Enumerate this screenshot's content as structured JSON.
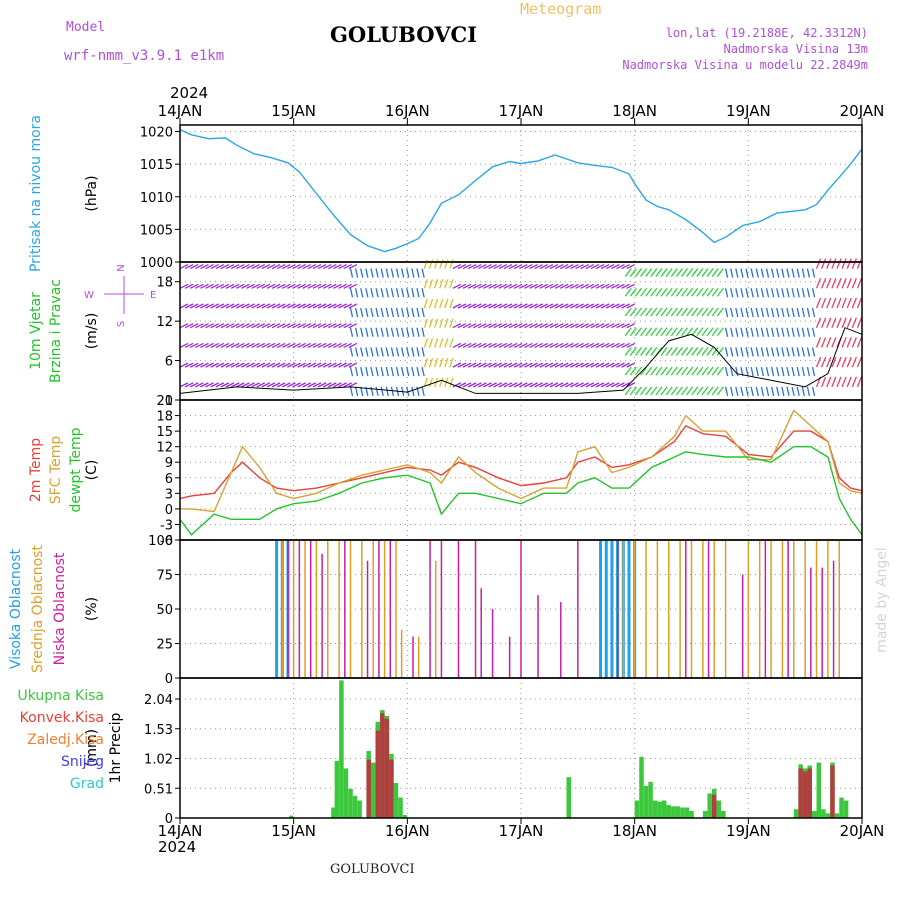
{
  "header": {
    "model_label": "Model",
    "model_name": "wrf-nmm_v3.9.1 e1km",
    "title": "GOLUBOVCI",
    "meteogram": "Meteogram",
    "lonlat": "lon,lat (19.2188E, 42.3312N)",
    "altitude": "Nadmorska Visina 13m",
    "model_altitude": "Nadmorska Visina u modelu 22.2849m",
    "year_top": "2024",
    "year_bottom": "2024",
    "footer_title": "GOLUBOVCI",
    "watermark": "made by Angel"
  },
  "colors": {
    "pressure": "#2aa6e6",
    "temp_2m": "#e8403a",
    "temp_sfc": "#d8a232",
    "dewpoint": "#22c42a",
    "cloud_high": "#22a0e6",
    "cloud_mid": "#dca028",
    "cloud_low": "#c81ea0",
    "precip_total": "#3cc83c",
    "precip_conv": "#b04040",
    "label_purple": "#b14fd8"
  },
  "chart_data": [
    {
      "type": "line",
      "name": "pressure",
      "ylabel_lines": [
        "Pritisak na nivou mora"
      ],
      "unit": "(hPa)",
      "ylim": [
        1000,
        1021
      ],
      "yticks": [
        1000,
        1005,
        1010,
        1015,
        1020
      ],
      "x_ticks": [
        "14JAN",
        "15JAN",
        "16JAN",
        "17JAN",
        "18JAN",
        "19JAN",
        "20JAN"
      ],
      "series": [
        {
          "x": [
            0,
            0.1,
            0.25,
            0.4,
            0.5,
            0.65,
            0.8,
            0.95,
            1.05,
            1.2,
            1.35,
            1.5,
            1.65,
            1.8,
            1.9,
            2.0,
            2.1,
            2.2,
            2.3,
            2.45,
            2.6,
            2.75,
            2.9,
            3.0,
            3.15,
            3.3,
            3.5,
            3.65,
            3.8,
            3.95,
            4.0,
            4.1,
            4.2,
            4.3,
            4.45,
            4.6,
            4.7,
            4.8,
            4.95,
            5.1,
            5.25,
            5.4,
            5.5,
            5.6,
            5.7,
            5.8,
            5.9,
            6.0
          ],
          "y": [
            1020.3,
            1019.5,
            1018.9,
            1019.0,
            1017.9,
            1016.6,
            1016.0,
            1015.2,
            1013.8,
            1010.5,
            1007.2,
            1004.2,
            1002.5,
            1001.6,
            1002.1,
            1002.8,
            1003.6,
            1006.0,
            1009.0,
            1010.3,
            1012.5,
            1014.6,
            1015.4,
            1015.1,
            1015.5,
            1016.4,
            1015.2,
            1014.8,
            1014.5,
            1013.5,
            1012.0,
            1009.5,
            1008.5,
            1008.0,
            1006.5,
            1004.5,
            1003.0,
            1003.8,
            1005.6,
            1006.2,
            1007.5,
            1007.8,
            1008.0,
            1008.8,
            1011.0,
            1013.0,
            1015.0,
            1017.3
          ]
        }
      ]
    },
    {
      "type": "scatter",
      "name": "wind",
      "ylabel_lines": [
        "10m Vjetar",
        "Brzina i Pravac"
      ],
      "unit": "(m/s)",
      "compass": {
        "north": "N",
        "south": "S",
        "west": "W",
        "east": "E"
      },
      "ylim": [
        0,
        21
      ],
      "yticks": [
        0,
        6,
        12,
        18
      ],
      "x_ticks": [
        "14JAN",
        "15JAN",
        "16JAN",
        "17JAN",
        "18JAN",
        "19JAN",
        "20JAN"
      ],
      "speed_series": {
        "x": [
          0,
          0.5,
          1.0,
          1.5,
          2.0,
          2.3,
          2.6,
          3.0,
          3.5,
          3.9,
          4.1,
          4.3,
          4.5,
          4.7,
          4.9,
          5.2,
          5.5,
          5.7,
          5.85,
          6.0
        ],
        "y": [
          1,
          2,
          1.5,
          2,
          1.2,
          3,
          1,
          1,
          1,
          1.5,
          5,
          9,
          10,
          8,
          4,
          3,
          2,
          4,
          11,
          10
        ]
      },
      "direction_periods": [
        {
          "from": 0.0,
          "to": 1.5,
          "color": "#9a2ad8"
        },
        {
          "from": 1.5,
          "to": 2.15,
          "color": "#2a70e0"
        },
        {
          "from": 2.15,
          "to": 2.4,
          "color": "#d8c028"
        },
        {
          "from": 2.4,
          "to": 3.97,
          "color": "#9a2ad8"
        },
        {
          "from": 3.97,
          "to": 4.8,
          "color": "#30d040"
        },
        {
          "from": 4.8,
          "to": 5.6,
          "color": "#2a70e0"
        },
        {
          "from": 5.6,
          "to": 6.0,
          "color": "#e84060"
        }
      ]
    },
    {
      "type": "line",
      "name": "temperature",
      "ylabel_lines": [
        "2m Temp",
        "SFC Temp",
        "dewpt Temp"
      ],
      "unit": "(C)",
      "ylim": [
        -6,
        21
      ],
      "yticks": [
        -6,
        -3,
        0,
        3,
        6,
        9,
        12,
        15,
        18,
        21
      ],
      "x_ticks": [
        "14JAN",
        "15JAN",
        "16JAN",
        "17JAN",
        "18JAN",
        "19JAN",
        "20JAN"
      ],
      "series": [
        {
          "key": "temp_2m",
          "x": [
            0,
            0.1,
            0.3,
            0.45,
            0.55,
            0.7,
            0.85,
            1.0,
            1.2,
            1.4,
            1.6,
            1.8,
            2.0,
            2.2,
            2.3,
            2.45,
            2.6,
            2.8,
            3.0,
            3.2,
            3.4,
            3.5,
            3.65,
            3.8,
            3.95,
            4.15,
            4.35,
            4.45,
            4.6,
            4.8,
            5.0,
            5.2,
            5.4,
            5.55,
            5.7,
            5.8,
            5.9,
            6.0
          ],
          "y": [
            2,
            2.5,
            3,
            7,
            9,
            6,
            4,
            3.5,
            4,
            5,
            6,
            7,
            8,
            7.5,
            6.5,
            9,
            8,
            6,
            4.5,
            5,
            6,
            9,
            10,
            8,
            8.5,
            10,
            13,
            16,
            14.5,
            14,
            10.5,
            10,
            15,
            15,
            13,
            6,
            4,
            3.5
          ]
        },
        {
          "key": "temp_sfc",
          "x": [
            0,
            0.1,
            0.3,
            0.45,
            0.55,
            0.7,
            0.85,
            1.0,
            1.2,
            1.4,
            1.6,
            1.8,
            2.0,
            2.2,
            2.3,
            2.45,
            2.6,
            2.8,
            3.0,
            3.2,
            3.4,
            3.5,
            3.65,
            3.8,
            3.95,
            4.15,
            4.35,
            4.45,
            4.6,
            4.8,
            5.0,
            5.2,
            5.4,
            5.55,
            5.7,
            5.8,
            5.9,
            6.0
          ],
          "y": [
            0,
            0,
            -0.5,
            7,
            12,
            8,
            3,
            2,
            3,
            5,
            6.5,
            7.5,
            8.5,
            7,
            5,
            10,
            7,
            4,
            2,
            4,
            4,
            11,
            12,
            7,
            8,
            10,
            14,
            18,
            15,
            15,
            9.5,
            9.5,
            19,
            16,
            13,
            5,
            3.5,
            3
          ]
        },
        {
          "key": "dewpoint",
          "x": [
            0,
            0.1,
            0.3,
            0.45,
            0.55,
            0.7,
            0.85,
            1.0,
            1.2,
            1.4,
            1.6,
            1.8,
            2.0,
            2.2,
            2.3,
            2.45,
            2.6,
            2.8,
            3.0,
            3.2,
            3.4,
            3.5,
            3.65,
            3.8,
            3.95,
            4.15,
            4.35,
            4.45,
            4.6,
            4.8,
            5.0,
            5.2,
            5.4,
            5.55,
            5.7,
            5.8,
            5.9,
            6.0
          ],
          "y": [
            -2,
            -5,
            -1,
            -2,
            -2,
            -2,
            0,
            1,
            1.5,
            3,
            5,
            6,
            6.5,
            5,
            -1,
            3,
            3,
            2,
            1,
            3,
            3,
            5,
            6,
            4,
            4,
            8,
            10,
            11,
            10.5,
            10,
            10,
            9,
            12,
            12,
            10,
            2,
            -2,
            -5
          ]
        }
      ]
    },
    {
      "type": "bar",
      "name": "clouds",
      "ylabel_lines": [
        "Visoka Oblacnost",
        "Srednja Oblacnost",
        "Niska Oblacnost"
      ],
      "unit": "(%)",
      "ylim": [
        0,
        100
      ],
      "yticks": [
        0,
        25,
        50,
        75,
        100
      ],
      "x_ticks": [
        "14JAN",
        "15JAN",
        "16JAN",
        "17JAN",
        "18JAN",
        "19JAN",
        "20JAN"
      ],
      "series": [
        {
          "key": "cloud_high",
          "x": [
            0.85,
            0.9,
            0.95,
            3.7,
            3.75,
            3.8,
            3.85,
            3.9,
            3.95,
            4.0
          ],
          "y": [
            100,
            100,
            100,
            100,
            100,
            100,
            100,
            100,
            100,
            100
          ]
        },
        {
          "key": "cloud_mid",
          "x": [
            0.9,
            1.0,
            1.1,
            1.2,
            1.3,
            1.4,
            1.5,
            1.6,
            1.7,
            1.8,
            1.9,
            1.95,
            2.1,
            2.25,
            3.9,
            4.0,
            4.1,
            4.2,
            4.3,
            4.4,
            4.5,
            4.6,
            4.7,
            4.8,
            5.0,
            5.1,
            5.2,
            5.3,
            5.4,
            5.5,
            5.6,
            5.7,
            5.8
          ],
          "y": [
            100,
            100,
            100,
            100,
            100,
            100,
            100,
            100,
            100,
            100,
            100,
            35,
            30,
            85,
            100,
            100,
            100,
            100,
            100,
            100,
            100,
            100,
            100,
            100,
            100,
            100,
            100,
            100,
            100,
            100,
            100,
            100,
            100
          ]
        },
        {
          "key": "cloud_low",
          "x": [
            0.95,
            1.05,
            1.15,
            1.25,
            1.45,
            1.65,
            1.75,
            1.85,
            2.05,
            2.2,
            2.3,
            2.45,
            2.6,
            2.65,
            2.75,
            2.9,
            3.0,
            3.15,
            3.35,
            3.5,
            3.85,
            4.45,
            4.65,
            4.95,
            5.15,
            5.35,
            5.55,
            5.65,
            5.75
          ],
          "y": [
            100,
            100,
            100,
            90,
            100,
            85,
            100,
            100,
            30,
            100,
            100,
            100,
            100,
            65,
            50,
            30,
            100,
            60,
            55,
            100,
            100,
            100,
            100,
            75,
            100,
            100,
            80,
            80,
            85
          ]
        }
      ]
    },
    {
      "type": "bar",
      "name": "precipitation",
      "ylabel_lines": [
        "1hr Precip"
      ],
      "unit": "(mm)",
      "legend": [
        {
          "key": "precip_total",
          "label": "Ukupna Kisa",
          "color": "#3cc83c"
        },
        {
          "key": "precip_conv",
          "label": "Konvek.Kisa",
          "color": "#e8403a"
        },
        {
          "key": "precip_frozen",
          "label": "Zaledj.Kisa",
          "color": "#f08030"
        },
        {
          "key": "precip_snow",
          "label": "Snijeg",
          "color": "#4040e8"
        },
        {
          "key": "precip_graupel",
          "label": "Grad",
          "color": "#30c8c8"
        }
      ],
      "ylim": [
        0,
        2.4
      ],
      "yticks": [
        0,
        0.51,
        1.02,
        1.53,
        2.04
      ],
      "x_ticks": [
        "14JAN",
        "15JAN",
        "16JAN",
        "17JAN",
        "18JAN",
        "19JAN",
        "20JAN"
      ],
      "series": [
        {
          "key": "precip_total",
          "x": [
            0.98,
            1.35,
            1.38,
            1.42,
            1.46,
            1.5,
            1.54,
            1.58,
            1.66,
            1.7,
            1.74,
            1.78,
            1.82,
            1.86,
            1.9,
            1.94,
            1.98,
            3.42,
            4.02,
            4.06,
            4.1,
            4.14,
            4.18,
            4.22,
            4.26,
            4.3,
            4.34,
            4.38,
            4.42,
            4.46,
            4.5,
            4.62,
            4.66,
            4.7,
            4.74,
            4.78,
            5.42,
            5.46,
            5.5,
            5.54,
            5.58,
            5.62,
            5.66,
            5.7,
            5.74,
            5.78,
            5.82,
            5.86
          ],
          "y": [
            0.04,
            0.18,
            0.98,
            2.36,
            0.85,
            0.5,
            0.38,
            0.3,
            1.15,
            0.95,
            1.65,
            1.85,
            1.75,
            1.1,
            0.6,
            0.35,
            0.05,
            0.7,
            0.3,
            1.05,
            0.55,
            0.62,
            0.3,
            0.28,
            0.3,
            0.22,
            0.2,
            0.2,
            0.18,
            0.18,
            0.12,
            0.12,
            0.42,
            0.5,
            0.3,
            0.12,
            0.15,
            0.92,
            0.85,
            0.9,
            0.12,
            0.95,
            0.15,
            0.08,
            0.95,
            0.08,
            0.35,
            0.3
          ]
        },
        {
          "key": "precip_conv",
          "x": [
            1.66,
            1.74,
            1.78,
            1.82,
            1.86,
            4.7,
            5.46,
            5.5,
            5.54,
            5.74
          ],
          "y": [
            1.0,
            1.5,
            1.8,
            1.7,
            1.0,
            0.4,
            0.85,
            0.8,
            0.85,
            0.9
          ]
        }
      ]
    }
  ]
}
